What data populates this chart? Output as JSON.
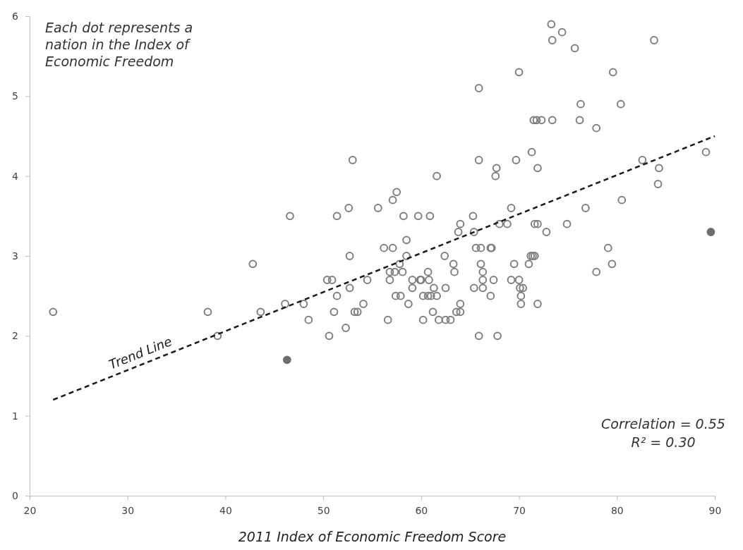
{
  "chart_data": {
    "type": "scatter",
    "xlabel": "2011 Index of Economic Freedom Score",
    "xlim": [
      20,
      90
    ],
    "xticks": [
      20,
      30,
      40,
      50,
      60,
      70,
      80,
      90
    ],
    "ylim": [
      0,
      6
    ],
    "yticks": [
      0,
      1,
      2,
      3,
      4,
      5,
      6
    ],
    "grid": false,
    "annotations": [
      "Each dot represents a nation in the Index of Economic Freedom",
      "Correlation = 0.55",
      "R² = 0.30"
    ],
    "series": [
      {
        "color": "#7f7f7f",
        "marker": "circle",
        "x": [
          22.4,
          38.2,
          39.2,
          42.8,
          43.6,
          46.1,
          46.6,
          48.0,
          48.5,
          53.0,
          65.9,
          67.7,
          67.6,
          61.6,
          57.5,
          57.1,
          52.6,
          55.6,
          51.4,
          58.2,
          59.7,
          60.9,
          65.3,
          64.0,
          63.8,
          65.4,
          68.0,
          58.5,
          56.2,
          57.1,
          65.6,
          66.1,
          67.1,
          67.2,
          52.7,
          58.5,
          62.4,
          57.8,
          63.3,
          66.1,
          56.8,
          57.3,
          58.1,
          60.7,
          63.4,
          66.3,
          50.4,
          50.9,
          54.5,
          56.8,
          59.1,
          59.9,
          60.0,
          60.8,
          66.3,
          67.4,
          52.7,
          59.1,
          61.3,
          62.5,
          65.4,
          66.3,
          51.4,
          57.4,
          57.9,
          60.2,
          60.7,
          61.0,
          61.6,
          67.1,
          54.1,
          58.7,
          64.0,
          51.1,
          53.2,
          53.5,
          61.2,
          63.6,
          64.0,
          56.6,
          60.2,
          61.8,
          62.5,
          63.0,
          52.3,
          50.6,
          65.9,
          67.8,
          73.3,
          74.4,
          73.4,
          83.8,
          75.7,
          70.0,
          79.6,
          65.9,
          76.3,
          80.4,
          71.5,
          71.8,
          72.3,
          73.4,
          76.2,
          77.9,
          71.3,
          89.1,
          69.7,
          82.6,
          71.9,
          84.3,
          84.2,
          80.5,
          76.8,
          69.2,
          68.8,
          71.6,
          71.9,
          74.9,
          72.8,
          79.1,
          71.2,
          71.4,
          71.6,
          69.5,
          71.0,
          79.5,
          77.9,
          69.2,
          70.0,
          70.1,
          70.4,
          70.2,
          70.2,
          71.9
        ],
        "values": [
          2.3,
          2.3,
          2.0,
          2.9,
          2.3,
          2.4,
          3.5,
          2.4,
          2.2,
          4.2,
          4.2,
          4.1,
          4.0,
          4.0,
          3.8,
          3.7,
          3.6,
          3.6,
          3.5,
          3.5,
          3.5,
          3.5,
          3.5,
          3.4,
          3.3,
          3.3,
          3.4,
          3.2,
          3.1,
          3.1,
          3.1,
          3.1,
          3.1,
          3.1,
          3.0,
          3.0,
          3.0,
          2.9,
          2.9,
          2.9,
          2.8,
          2.8,
          2.8,
          2.8,
          2.8,
          2.8,
          2.7,
          2.7,
          2.7,
          2.7,
          2.7,
          2.7,
          2.7,
          2.7,
          2.7,
          2.7,
          2.6,
          2.6,
          2.6,
          2.6,
          2.6,
          2.6,
          2.5,
          2.5,
          2.5,
          2.5,
          2.5,
          2.5,
          2.5,
          2.5,
          2.4,
          2.4,
          2.4,
          2.3,
          2.3,
          2.3,
          2.3,
          2.3,
          2.3,
          2.2,
          2.2,
          2.2,
          2.2,
          2.2,
          2.1,
          2.0,
          2.0,
          2.0,
          5.9,
          5.8,
          5.7,
          5.7,
          5.6,
          5.3,
          5.3,
          5.1,
          4.9,
          4.9,
          4.7,
          4.7,
          4.7,
          4.7,
          4.7,
          4.6,
          4.3,
          4.3,
          4.2,
          4.2,
          4.1,
          4.1,
          3.9,
          3.7,
          3.6,
          3.6,
          3.4,
          3.4,
          3.4,
          3.4,
          3.3,
          3.1,
          3.0,
          3.0,
          3.0,
          2.9,
          2.9,
          2.9,
          2.8,
          2.7,
          2.7,
          2.6,
          2.6,
          2.5,
          2.4,
          2.4
        ]
      },
      {
        "color": "#6e6e6e",
        "marker": "circle",
        "x": [
          46.3,
          89.6
        ],
        "values": [
          1.7,
          3.3
        ]
      },
      {
        "type": "line",
        "name": "Trend Line",
        "color": "#1a1a1a",
        "line_style": "dashed",
        "marker": "none",
        "x": [
          22.4,
          90
        ],
        "values": [
          1.2,
          4.5
        ]
      }
    ]
  }
}
